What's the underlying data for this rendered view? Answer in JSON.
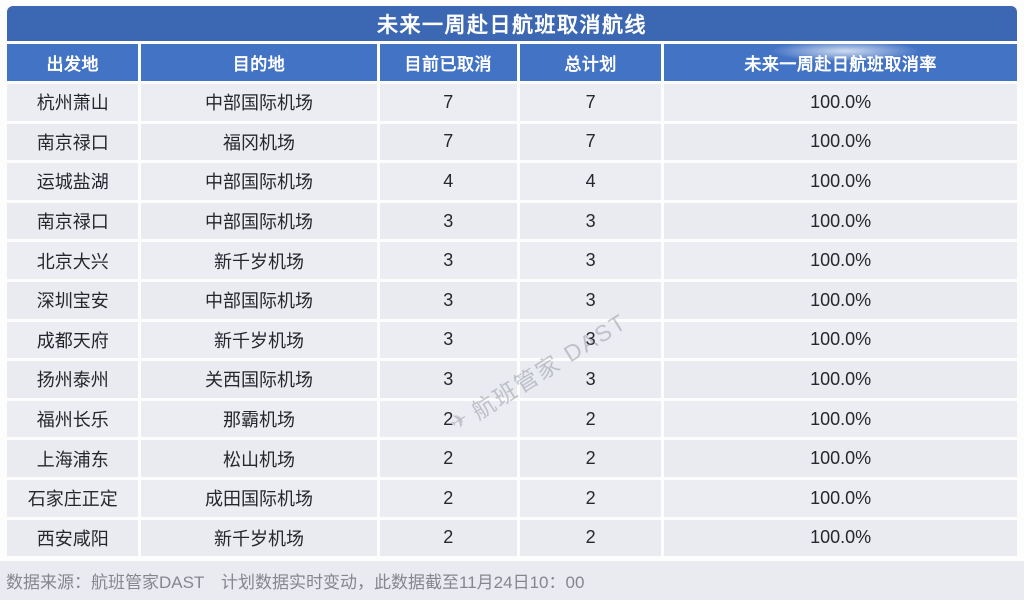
{
  "title": "未来一周赴日航班取消航线",
  "columns": [
    {
      "key": "from",
      "label": "出发地"
    },
    {
      "key": "to",
      "label": "目的地"
    },
    {
      "key": "cancelled",
      "label": "目前已取消"
    },
    {
      "key": "planned",
      "label": "总计划"
    },
    {
      "key": "rate",
      "label": "未来一周赴日航班取消率"
    }
  ],
  "rows": [
    {
      "from": "杭州萧山",
      "to": "中部国际机场",
      "cancelled": "7",
      "planned": "7",
      "rate": "100.0%"
    },
    {
      "from": "南京禄口",
      "to": "福冈机场",
      "cancelled": "7",
      "planned": "7",
      "rate": "100.0%"
    },
    {
      "from": "运城盐湖",
      "to": "中部国际机场",
      "cancelled": "4",
      "planned": "4",
      "rate": "100.0%"
    },
    {
      "from": "南京禄口",
      "to": "中部国际机场",
      "cancelled": "3",
      "planned": "3",
      "rate": "100.0%"
    },
    {
      "from": "北京大兴",
      "to": "新千岁机场",
      "cancelled": "3",
      "planned": "3",
      "rate": "100.0%"
    },
    {
      "from": "深圳宝安",
      "to": "中部国际机场",
      "cancelled": "3",
      "planned": "3",
      "rate": "100.0%"
    },
    {
      "from": "成都天府",
      "to": "新千岁机场",
      "cancelled": "3",
      "planned": "3",
      "rate": "100.0%"
    },
    {
      "from": "扬州泰州",
      "to": "关西国际机场",
      "cancelled": "3",
      "planned": "3",
      "rate": "100.0%"
    },
    {
      "from": "福州长乐",
      "to": "那霸机场",
      "cancelled": "2",
      "planned": "2",
      "rate": "100.0%"
    },
    {
      "from": "上海浦东",
      "to": "松山机场",
      "cancelled": "2",
      "planned": "2",
      "rate": "100.0%"
    },
    {
      "from": "石家庄正定",
      "to": "成田国际机场",
      "cancelled": "2",
      "planned": "2",
      "rate": "100.0%"
    },
    {
      "from": "西安咸阳",
      "to": "新千岁机场",
      "cancelled": "2",
      "planned": "2",
      "rate": "100.0%"
    }
  ],
  "footer": {
    "source": "数据来源：航班管家DAST　计划数据实时变动，此数据截至11月24日10：00"
  },
  "watermark": {
    "text": "航班管家 DAST",
    "icon": "flight-logo-icon"
  },
  "colors": {
    "page_bg": "#fdfdfe",
    "title_bar_bg": "#3c67b3",
    "header_bg": "#4373c5",
    "header_text": "#ffffff",
    "row_bg": "#e9ebf1",
    "row_alt_bg": "#ecedf3",
    "text": "#26262c",
    "footer_bg": "#eaebf0",
    "footer_text": "#85868f",
    "watermark": "rgba(128,132,144,0.42)"
  },
  "chart_data": {
    "type": "table",
    "title": "未来一周赴日航班取消航线",
    "columns": [
      "出发地",
      "目的地",
      "目前已取消",
      "总计划",
      "未来一周赴日航班取消率"
    ],
    "rows": [
      [
        "杭州萧山",
        "中部国际机场",
        7,
        7,
        "100.0%"
      ],
      [
        "南京禄口",
        "福冈机场",
        7,
        7,
        "100.0%"
      ],
      [
        "运城盐湖",
        "中部国际机场",
        4,
        4,
        "100.0%"
      ],
      [
        "南京禄口",
        "中部国际机场",
        3,
        3,
        "100.0%"
      ],
      [
        "北京大兴",
        "新千岁机场",
        3,
        3,
        "100.0%"
      ],
      [
        "深圳宝安",
        "中部国际机场",
        3,
        3,
        "100.0%"
      ],
      [
        "成都天府",
        "新千岁机场",
        3,
        3,
        "100.0%"
      ],
      [
        "扬州泰州",
        "关西国际机场",
        3,
        3,
        "100.0%"
      ],
      [
        "福州长乐",
        "那霸机场",
        2,
        2,
        "100.0%"
      ],
      [
        "上海浦东",
        "松山机场",
        2,
        2,
        "100.0%"
      ],
      [
        "石家庄正定",
        "成田国际机场",
        2,
        2,
        "100.0%"
      ],
      [
        "西安咸阳",
        "新千岁机场",
        2,
        2,
        "100.0%"
      ]
    ],
    "note": "数据来源：航班管家DAST　计划数据实时变动，此数据截至11月24日10：00"
  }
}
